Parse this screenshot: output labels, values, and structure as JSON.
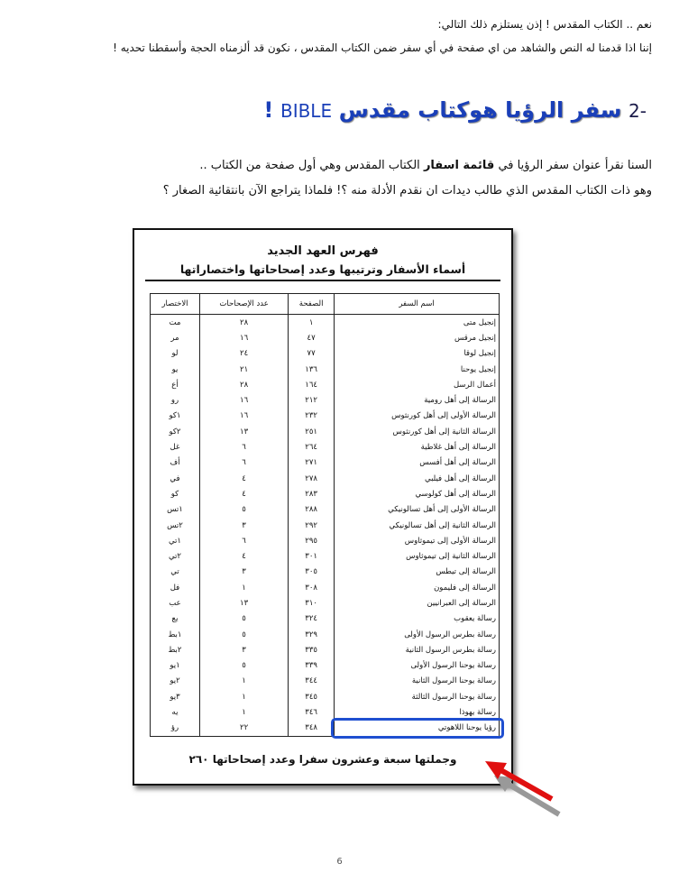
{
  "intro": {
    "lines": [
      "نعم .. الكتاب المقدس ! إذن يستلزم ذلك التالي:",
      "إننا اذا قدمنا له النص والشاهد من اي صفحة في أي سفر ضمن الكتاب المقدس ، نكون قد ألزمناه الحجة وأسقطنا تحديه !"
    ]
  },
  "heading": {
    "number": "2-",
    "title": "سفر الرؤيا هوكتاب مقدس",
    "latin": "BIBLE",
    "mark": "!"
  },
  "paragraph": {
    "line1": {
      "before": "السنا نقرأ عنوان سفر الرؤيا في ",
      "bold": "قائمة اسفار",
      "after": " الكتاب المقدس وهي أول صفحة من الكتاب .."
    },
    "line2": "وهو ذات الكتاب المقدس الذي طالب ديدات ان نقدم الأدلة منه ؟! فلماذا يتراجع الآن بانتقائية الصغار ؟"
  },
  "scan": {
    "title": "فهرس العهد الجديد",
    "subtitle": "أسماء الأسفار وترتيبها وعدد إصحاحاتها واختصاراتها",
    "table": {
      "headers": [
        "اسم السفر",
        "الصفحة",
        "عدد الإصحاحات",
        "الاختصار"
      ],
      "rows": [
        [
          "إنجيل متى",
          "١",
          "٢٨",
          "مت"
        ],
        [
          "إنجيل مرقس",
          "٤٧",
          "١٦",
          "مر"
        ],
        [
          "إنجيل لوقا",
          "٧٧",
          "٢٤",
          "لو"
        ],
        [
          "إنجيل يوحنا",
          "١٣٦",
          "٢١",
          "يو"
        ],
        [
          "أعمال الرسل",
          "١٦٤",
          "٢٨",
          "أع"
        ],
        [
          "الرسالة إلى أهل رومية",
          "٢١٢",
          "١٦",
          "رو"
        ],
        [
          "الرسالة الأولى إلى أهل كورنثوس",
          "٢٣٢",
          "١٦",
          "١كو"
        ],
        [
          "الرسالة الثانية إلى أهل كورنثوس",
          "٢٥١",
          "١٣",
          "٢كو"
        ],
        [
          "الرسالة إلى أهل غلاطية",
          "٢٦٤",
          "٦",
          "غل"
        ],
        [
          "الرسالة إلى أهل أفسس",
          "٢٧١",
          "٦",
          "أف"
        ],
        [
          "الرسالة إلى أهل فيلبي",
          "٢٧٨",
          "٤",
          "في"
        ],
        [
          "الرسالة إلى أهل كولوسي",
          "٢٨٣",
          "٤",
          "كو"
        ],
        [
          "الرسالة الأولى إلى أهل تسالونيكي",
          "٢٨٨",
          "٥",
          "١تس"
        ],
        [
          "الرسالة الثانية إلى أهل تسالونيكي",
          "٢٩٢",
          "٣",
          "٢تس"
        ],
        [
          "الرسالة الأولى إلى تيموثاوس",
          "٢٩٥",
          "٦",
          "١تي"
        ],
        [
          "الرسالة الثانية إلى تيموثاوس",
          "٣٠١",
          "٤",
          "٢تي"
        ],
        [
          "الرسالة إلى تيطس",
          "٣٠٥",
          "٣",
          "تي"
        ],
        [
          "الرسالة إلى فليمون",
          "٣٠٨",
          "١",
          "فل"
        ],
        [
          "الرسالة إلى العبرانيين",
          "٣١٠",
          "١٣",
          "عب"
        ],
        [
          "رسالة يعقوب",
          "٣٢٤",
          "٥",
          "يع"
        ],
        [
          "رسالة بطرس الرسول الأولى",
          "٣٢٩",
          "٥",
          "١بط"
        ],
        [
          "رسالة بطرس الرسول الثانية",
          "٣٣٥",
          "٣",
          "٢بط"
        ],
        [
          "رسالة يوحنا الرسول الأولى",
          "٣٣٩",
          "٥",
          "١يو"
        ],
        [
          "رسالة يوحنا الرسول الثانية",
          "٣٤٤",
          "١",
          "٢يو"
        ],
        [
          "رسالة يوحنا الرسول الثالثة",
          "٣٤٥",
          "١",
          "٣يو"
        ],
        [
          "رسالة يهوذا",
          "٣٤٦",
          "١",
          "يه"
        ],
        [
          "رؤيا يوحنا اللاهوتي",
          "٣٤٨",
          "٢٢",
          "رؤ"
        ]
      ]
    },
    "footer": "وجملتها سبعة وعشرون سفرا وعدد إصحاحاتها ٢٦٠"
  },
  "page_number": "6"
}
